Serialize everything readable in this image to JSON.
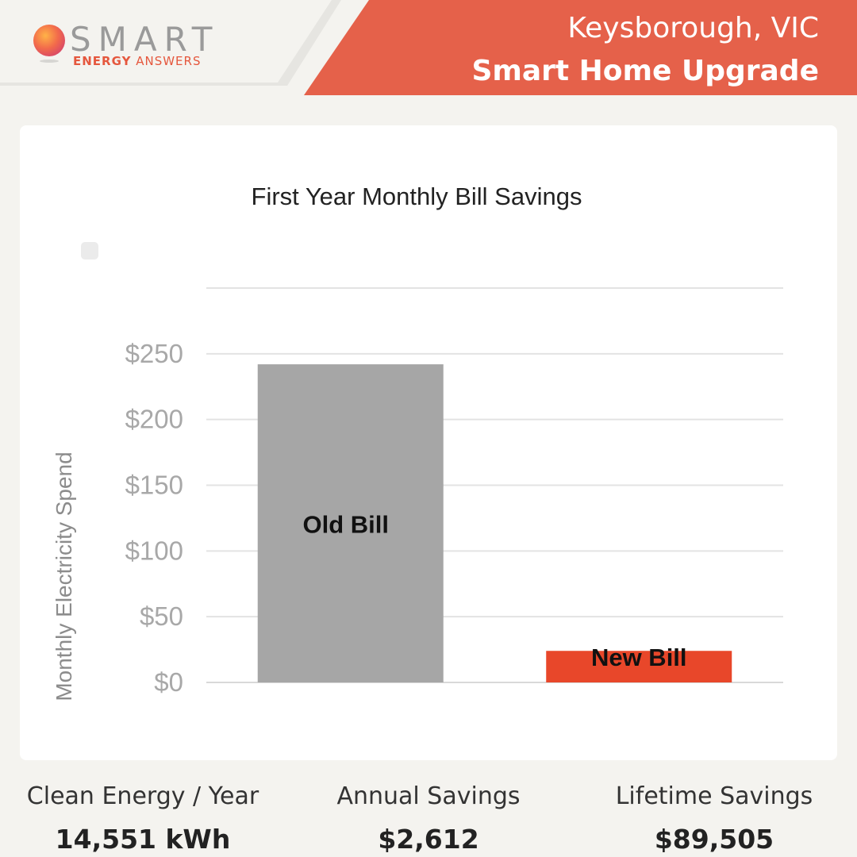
{
  "brand": {
    "name": "SMART",
    "tagline_bold": "ENERGY",
    "tagline_rest": " ANSWERS"
  },
  "header": {
    "location": "Keysborough, VIC",
    "plan": "Smart Home Upgrade"
  },
  "colors": {
    "accent": "#e5614a",
    "old_bill": "#a6a6a6",
    "new_bill": "#e8472a",
    "background": "#f4f3ef"
  },
  "chart_data": {
    "type": "bar",
    "title": "First Year Monthly Bill Savings",
    "ylabel": "Monthly Electricity Spend",
    "xlabel": "",
    "ylim": [
      0,
      300
    ],
    "yticks": [
      0,
      50,
      100,
      150,
      200,
      250,
      300
    ],
    "ytick_labels": [
      "$0",
      "$50",
      "$100",
      "$150",
      "$200",
      "$250",
      ""
    ],
    "categories": [
      "Old Bill",
      "New Bill"
    ],
    "values": [
      242,
      24
    ],
    "bar_colors": [
      "#a6a6a6",
      "#e8472a"
    ],
    "grid": true,
    "legend": "top-left"
  },
  "stats": [
    {
      "label": "Clean Energy / Year",
      "value": "14,551 kWh"
    },
    {
      "label": "Annual Savings",
      "value": "$2,612"
    },
    {
      "label": "Lifetime Savings",
      "value": "$89,505"
    }
  ]
}
